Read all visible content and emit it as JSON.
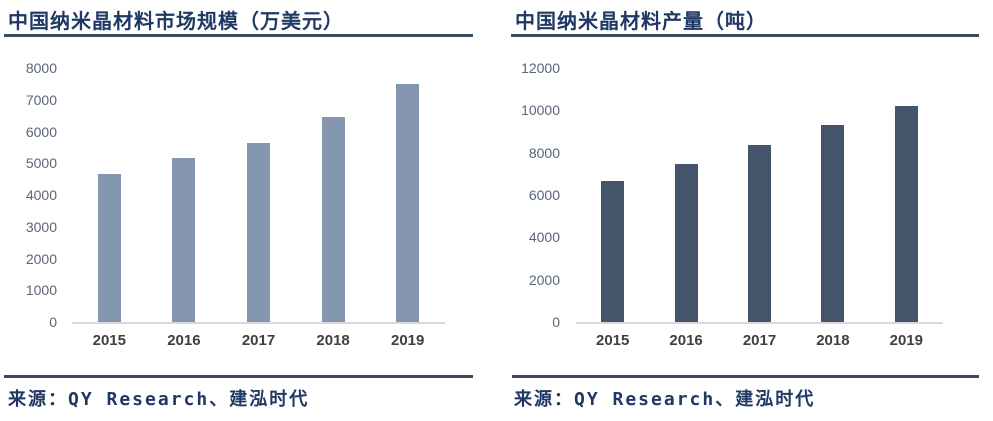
{
  "colors": {
    "background": "#FFFFFF",
    "title_text": "#1F3864",
    "rule_line": "#3B4A62",
    "axis_tick_text": "#5A6578",
    "category_text": "#404040",
    "baseline": "#D9D9D9",
    "market_bar": "#8496B0",
    "production_bar": "#44546A"
  },
  "chart_data": [
    {
      "type": "bar",
      "title": "中国纳米晶材料市场规模（万美元）",
      "categories": [
        "2015",
        "2016",
        "2017",
        "2018",
        "2019"
      ],
      "values": [
        4650,
        5150,
        5650,
        6450,
        7500
      ],
      "xlabel": "",
      "ylabel": "",
      "ylim": [
        0,
        8000
      ],
      "yticks": [
        0,
        1000,
        2000,
        3000,
        4000,
        5000,
        6000,
        7000,
        8000
      ],
      "grid": false,
      "legend_position": "none",
      "bar_color": "#8496B0",
      "source": "来源：QY Research、建泓时代"
    },
    {
      "type": "bar",
      "title": "中国纳米晶材料产量（吨）",
      "categories": [
        "2015",
        "2016",
        "2017",
        "2018",
        "2019"
      ],
      "values": [
        6650,
        7450,
        8350,
        9300,
        10200
      ],
      "xlabel": "",
      "ylabel": "",
      "ylim": [
        0,
        12000
      ],
      "yticks": [
        0,
        2000,
        4000,
        6000,
        8000,
        10000,
        12000
      ],
      "grid": false,
      "legend_position": "none",
      "bar_color": "#44546A",
      "source": "来源：QY Research、建泓时代"
    }
  ]
}
